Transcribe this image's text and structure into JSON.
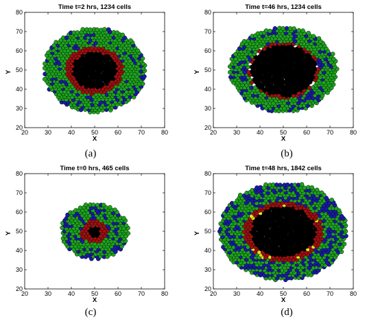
{
  "chart_data": [
    {
      "type": "scatter",
      "panel": "(a)",
      "title": "Time t=2 hrs, 1234 cells",
      "xlabel": "X",
      "ylabel": "Y",
      "xlim": [
        20,
        80
      ],
      "ylim": [
        20,
        80
      ],
      "xticks": [
        "20",
        "30",
        "40",
        "50",
        "60",
        "70",
        "80"
      ],
      "yticks": [
        "20",
        "30",
        "40",
        "50",
        "60",
        "70",
        "80"
      ],
      "center": [
        50,
        50
      ],
      "outer_radius": [
        22,
        22
      ],
      "series": [
        {
          "color": "#000000",
          "r_range": [
            0,
            9.5
          ],
          "density": 1.0,
          "type": "core"
        },
        {
          "color": "#a01010",
          "r_range": [
            9.5,
            12.5
          ],
          "density": 1.0,
          "type": "ring"
        },
        {
          "color": "#1ea31e",
          "r_range": [
            12.5,
            22
          ],
          "density": 0.78,
          "type": "ring"
        },
        {
          "color": "#1a1aa8",
          "r_range": [
            12.5,
            22
          ],
          "density": 0.22,
          "type": "ring"
        }
      ]
    },
    {
      "type": "scatter",
      "panel": "(b)",
      "title": "Time t=46 hrs, 1234 cells",
      "xlabel": "X",
      "ylabel": "Y",
      "xlim": [
        20,
        80
      ],
      "ylim": [
        20,
        80
      ],
      "xticks": [
        "20",
        "30",
        "40",
        "50",
        "60",
        "70",
        "80"
      ],
      "yticks": [
        "20",
        "30",
        "40",
        "50",
        "60",
        "70",
        "80"
      ],
      "center": [
        50,
        50
      ],
      "outer_radius": [
        23.5,
        22.5
      ],
      "series": [
        {
          "color": "#000000",
          "r_range": [
            0,
            14
          ],
          "density": 1.0,
          "type": "core"
        },
        {
          "color": "#a01010",
          "r_range": [
            14,
            15.2
          ],
          "density": 0.7,
          "type": "ring"
        },
        {
          "color": "#1ea31e",
          "r_range": [
            15.2,
            23
          ],
          "density": 0.8,
          "type": "ring"
        },
        {
          "color": "#1a1aa8",
          "r_range": [
            15.2,
            23
          ],
          "density": 0.2,
          "type": "ring"
        }
      ]
    },
    {
      "type": "scatter",
      "panel": "(c)",
      "title": "Time t=0 hrs, 465 cells",
      "xlabel": "X",
      "ylabel": "Y",
      "xlim": [
        20,
        80
      ],
      "ylim": [
        20,
        80
      ],
      "xticks": [
        "20",
        "30",
        "40",
        "50",
        "60",
        "70",
        "80"
      ],
      "yticks": [
        "20",
        "30",
        "40",
        "50",
        "60",
        "70",
        "80"
      ],
      "center": [
        50,
        50
      ],
      "outer_radius": [
        14.5,
        14.5
      ],
      "series": [
        {
          "color": "#000000",
          "r_range": [
            0,
            2.6
          ],
          "density": 1.0,
          "type": "core"
        },
        {
          "color": "#a01010",
          "r_range": [
            2.6,
            6
          ],
          "density": 1.0,
          "type": "ring"
        },
        {
          "color": "#1ea31e",
          "r_range": [
            6,
            14.5
          ],
          "density": 0.74,
          "type": "ring"
        },
        {
          "color": "#1a1aa8",
          "r_range": [
            6,
            14.5
          ],
          "density": 0.26,
          "type": "ring"
        }
      ]
    },
    {
      "type": "scatter",
      "panel": "(d)",
      "title": "Time t=48 hrs, 1842 cells",
      "xlabel": "X",
      "ylabel": "Y",
      "xlim": [
        20,
        80
      ],
      "ylim": [
        20,
        80
      ],
      "xticks": [
        "20",
        "30",
        "40",
        "50",
        "60",
        "70",
        "80"
      ],
      "yticks": [
        "20",
        "30",
        "40",
        "50",
        "60",
        "70",
        "80"
      ],
      "center": [
        50,
        50
      ],
      "outer_radius": [
        27.5,
        25.5
      ],
      "series": [
        {
          "color": "#000000",
          "r_range": [
            0,
            14
          ],
          "density": 1.0,
          "type": "core"
        },
        {
          "color": "#a01010",
          "r_range": [
            14,
            17
          ],
          "density": 0.85,
          "type": "ring"
        },
        {
          "color": "#e8e020",
          "r_range": [
            14,
            17
          ],
          "density": 0.15,
          "type": "ring"
        },
        {
          "color": "#1ea31e",
          "r_range": [
            17,
            27.5
          ],
          "density": 0.6,
          "type": "ring"
        },
        {
          "color": "#1a1aa8",
          "r_range": [
            17,
            27.5
          ],
          "density": 0.4,
          "type": "ring"
        }
      ]
    }
  ],
  "captions": [
    "(a)",
    "(b)",
    "(c)",
    "(d)"
  ]
}
